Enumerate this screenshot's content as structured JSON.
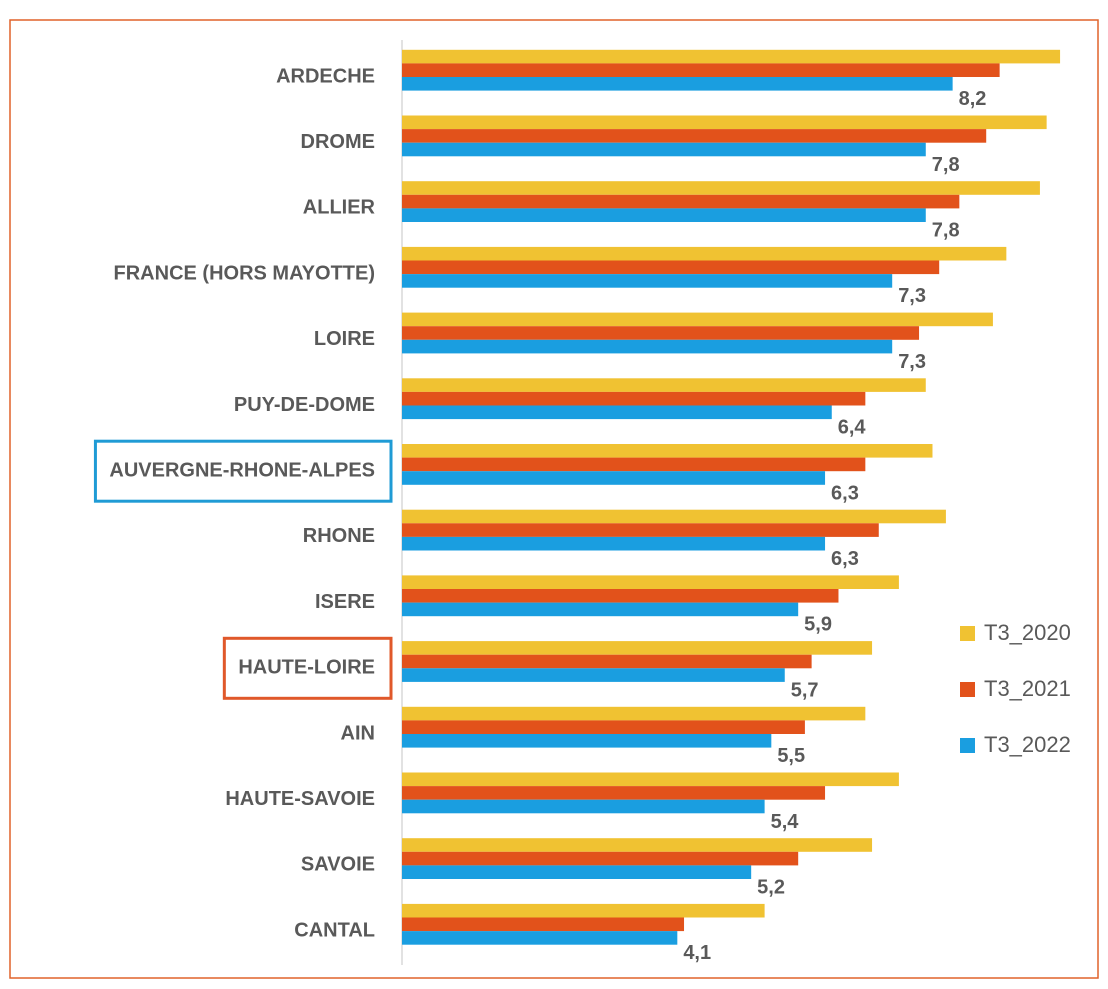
{
  "chart_data": {
    "type": "hbar",
    "categories": [
      "ARDECHE",
      "DROME",
      "ALLIER",
      "FRANCE (HORS MAYOTTE)",
      "LOIRE",
      "PUY-DE-DOME",
      "AUVERGNE-RHONE-ALPES",
      "RHONE",
      "ISERE",
      "HAUTE-LOIRE",
      "AIN",
      "HAUTE-SAVOIE",
      "SAVOIE",
      "CANTAL"
    ],
    "series": [
      {
        "name": "T3_2020",
        "color": "#f0c232",
        "values": [
          9.8,
          9.6,
          9.5,
          9.0,
          8.8,
          7.8,
          7.9,
          8.1,
          7.4,
          7.0,
          6.9,
          7.4,
          7.0,
          5.4
        ]
      },
      {
        "name": "T3_2021",
        "color": "#e2521b",
        "values": [
          8.9,
          8.7,
          8.3,
          8.0,
          7.7,
          6.9,
          6.9,
          7.1,
          6.5,
          6.1,
          6.0,
          6.3,
          5.9,
          4.2
        ]
      },
      {
        "name": "T3_2022",
        "color": "#1a9ee0",
        "values": [
          8.2,
          7.8,
          7.8,
          7.3,
          7.3,
          6.4,
          6.3,
          6.3,
          5.9,
          5.7,
          5.5,
          5.4,
          5.2,
          4.1
        ],
        "value_labels": [
          "8,2",
          "7,8",
          "7,8",
          "7,3",
          "7,3",
          "6,4",
          "6,3",
          "6,3",
          "5,9",
          "5,7",
          "5,5",
          "5,4",
          "5,2",
          "4,1"
        ]
      }
    ],
    "label_boxes": [
      null,
      null,
      null,
      null,
      null,
      null,
      "#1f9bd5",
      null,
      null,
      "#e0582a",
      null,
      null,
      null,
      null
    ],
    "xlim": [
      0,
      10
    ],
    "legend": "right"
  }
}
